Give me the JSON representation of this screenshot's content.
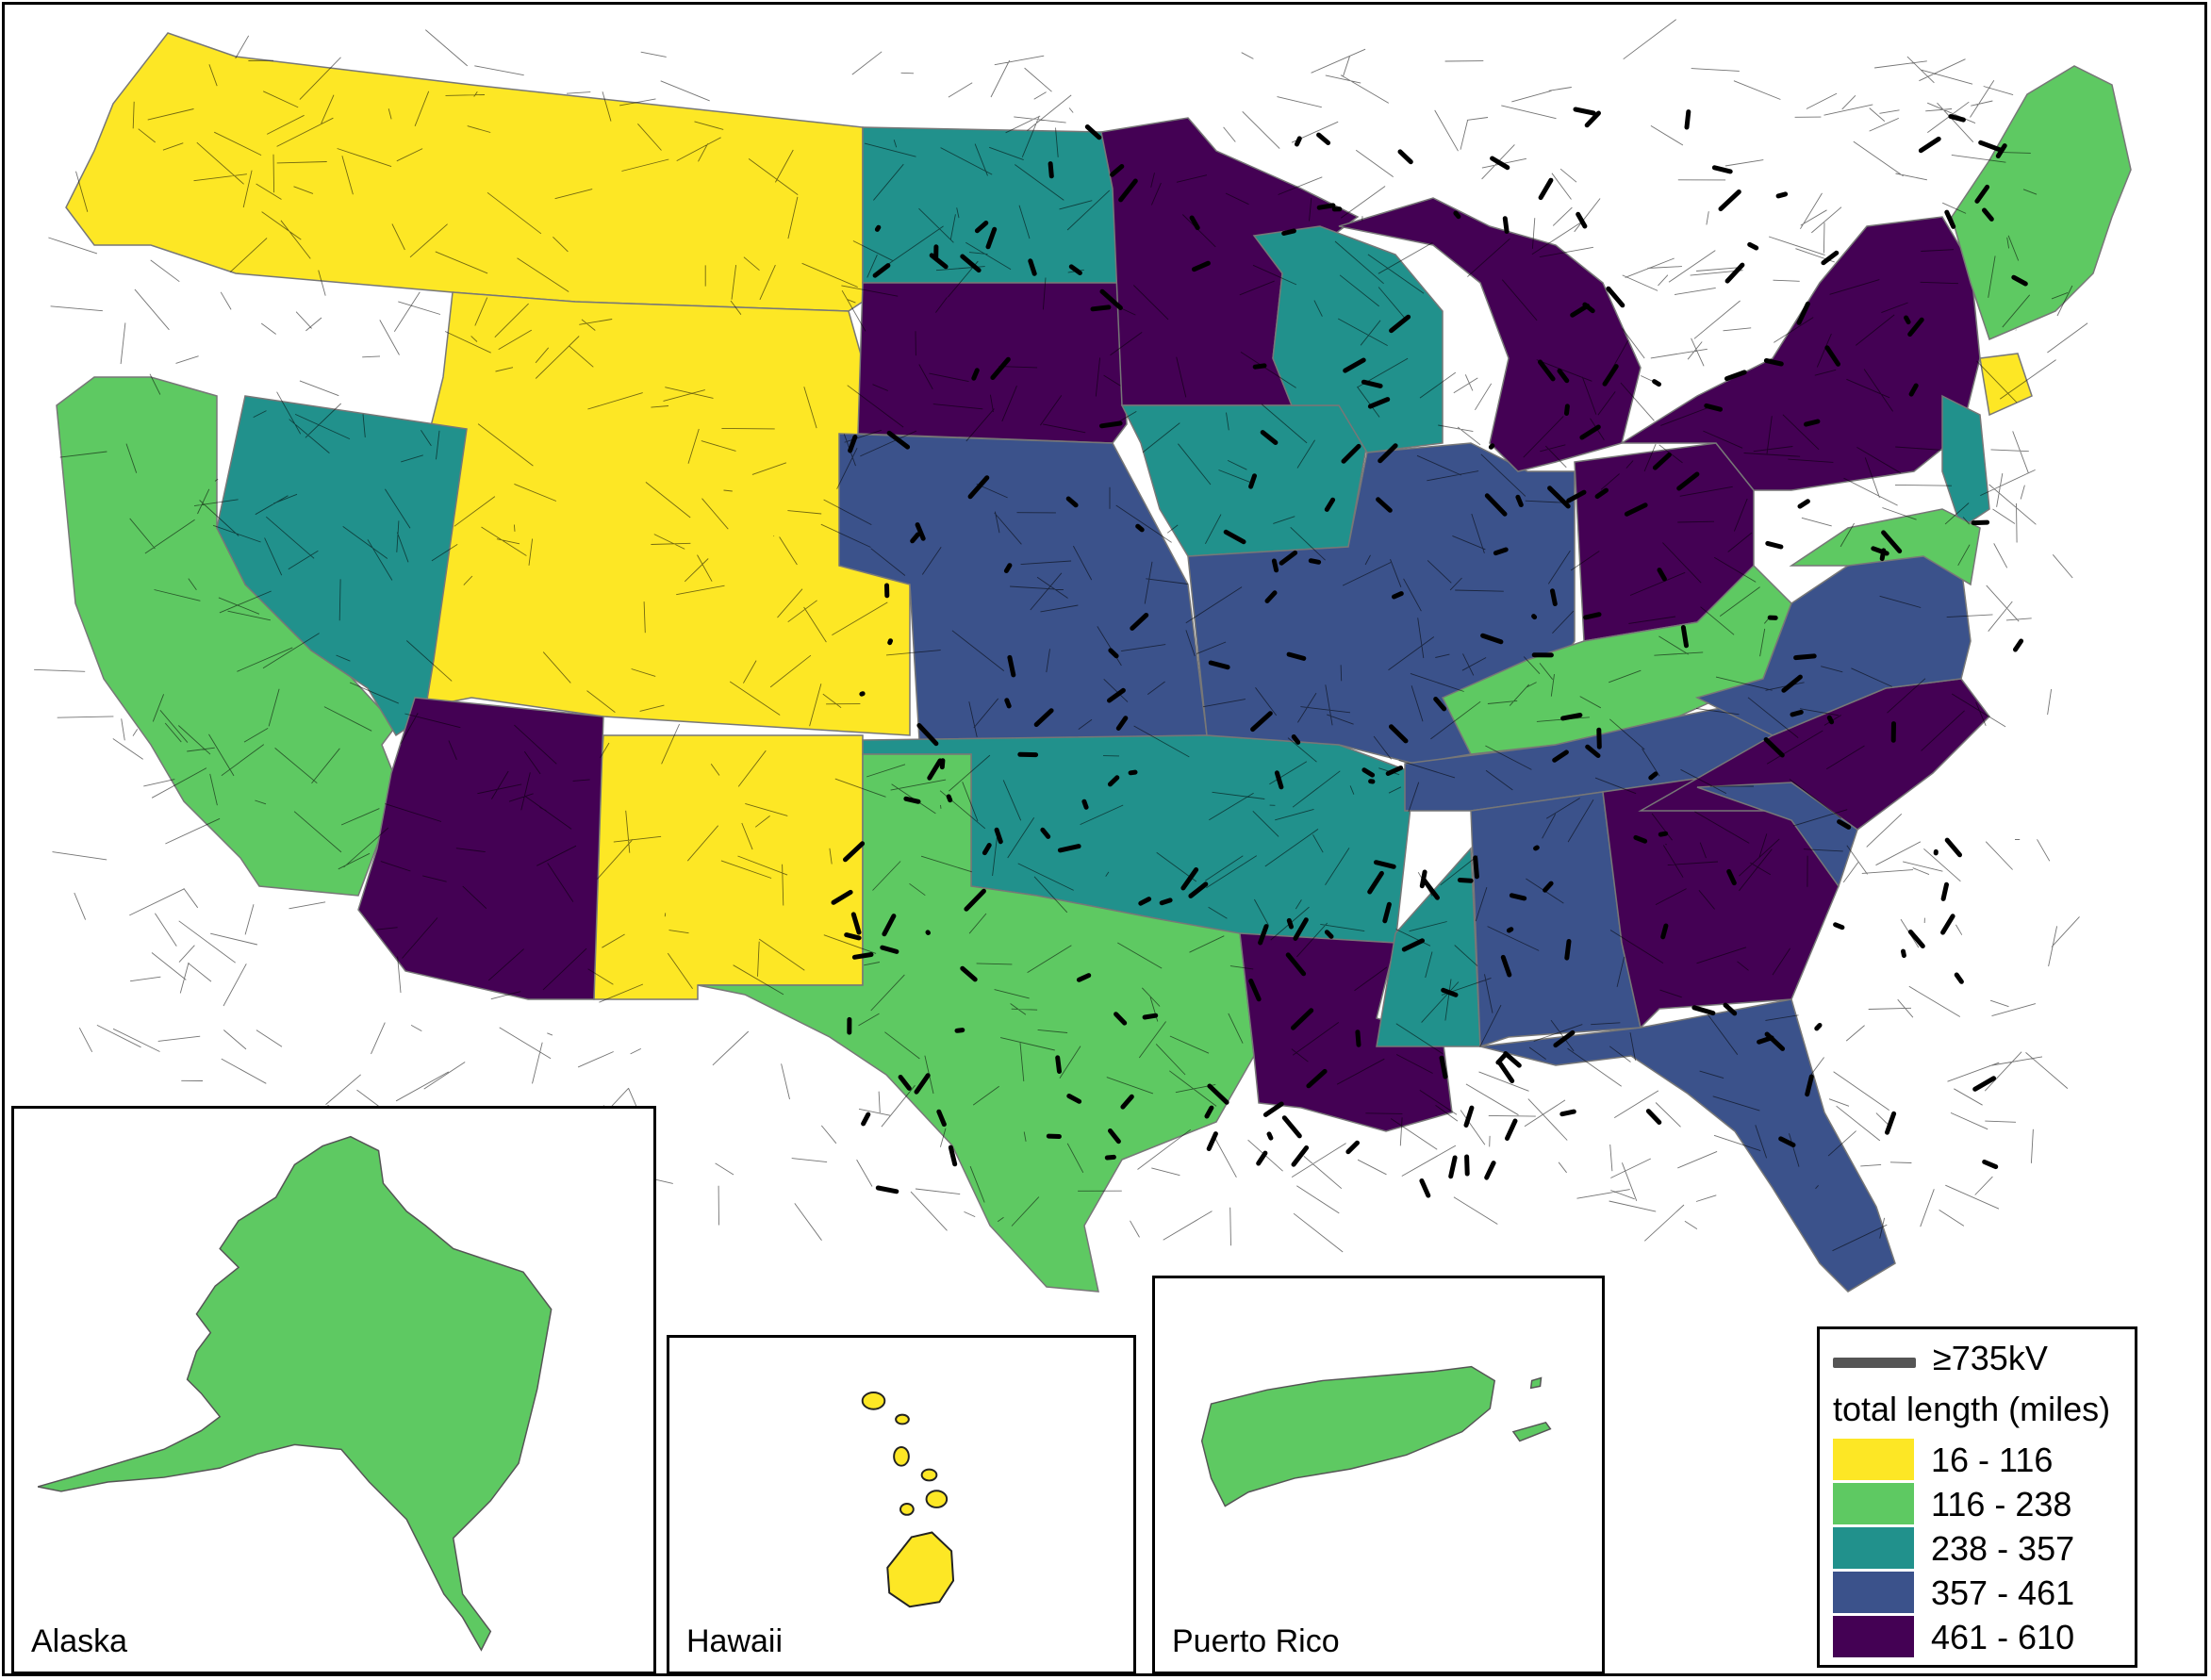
{
  "legend": {
    "line_label": "≥735kV",
    "line_color": "#555555",
    "title": "total length (miles)",
    "bins": [
      {
        "label": "16 - 116",
        "color": "#fde725"
      },
      {
        "label": "116 - 238",
        "color": "#5ec962"
      },
      {
        "label": "238 - 357",
        "color": "#21918c"
      },
      {
        "label": "357 - 461",
        "color": "#3b528b"
      },
      {
        "label": "461 - 610",
        "color": "#440154"
      }
    ]
  },
  "insets": {
    "alaska": {
      "label": "Alaska",
      "color": "#5ec962"
    },
    "hawaii": {
      "label": "Hawaii",
      "color": "#fde725"
    },
    "puerto_rico": {
      "label": "Puerto Rico",
      "color": "#5ec962"
    }
  },
  "regions": {
    "northwest": "#fde725",
    "mountain": "#fde725",
    "new_mexico": "#fde725",
    "california": "#5ec962",
    "nevada": "#21918c",
    "arizona": "#440154",
    "north_dakota": "#21918c",
    "south_dakota": "#440154",
    "kansas_nebraska": "#3b528b",
    "oklahoma_arkansas": "#21918c",
    "texas": "#5ec962",
    "minnesota": "#440154",
    "iowa": "#21918c",
    "wisconsin": "#21918c",
    "missouri_illinois": "#3b528b",
    "louisiana": "#440154",
    "mississippi": "#21918c",
    "michigan": "#440154",
    "ohio": "#440154",
    "kentucky": "#5ec962",
    "tennessee": "#3b528b",
    "alabama": "#3b528b",
    "georgia": "#440154",
    "florida": "#3b528b",
    "carolinas": "#440154",
    "south_carolina": "#3b528b",
    "virginia": "#3b528b",
    "pennsylvania_ny": "#440154",
    "new_jersey": "#21918c",
    "maryland": "#5ec962",
    "new_england": "#5ec962",
    "connecticut": "#fde725"
  }
}
